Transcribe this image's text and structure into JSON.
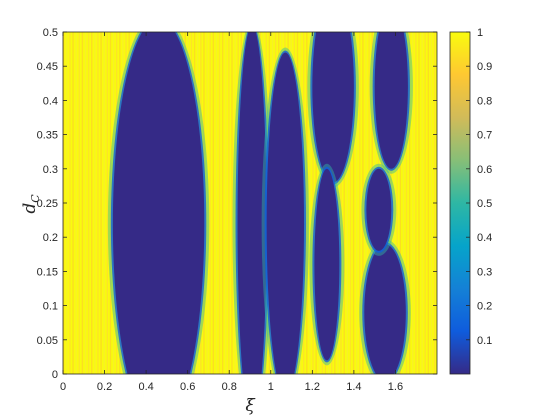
{
  "chart_data": {
    "type": "heatmap",
    "title": "",
    "xlabel": "ξ",
    "ylabel": "d",
    "ylabel_subscript": "C",
    "xlim": [
      0,
      1.8
    ],
    "ylim": [
      0,
      0.5
    ],
    "xticks": [
      0,
      0.2,
      0.4,
      0.6,
      0.8,
      1,
      1.2,
      1.4,
      1.6
    ],
    "xtick_labels": [
      "0",
      "0.2",
      "0.4",
      "0.6",
      "0.8",
      "1",
      "1.2",
      "1.4",
      "1.6"
    ],
    "yticks": [
      0,
      0.05,
      0.1,
      0.15,
      0.2,
      0.25,
      0.3,
      0.35,
      0.4,
      0.45,
      0.5
    ],
    "ytick_labels": [
      "0",
      "0.05",
      "0.1",
      "0.15",
      "0.2",
      "0.25",
      "0.3",
      "0.35",
      "0.4",
      "0.45",
      "0.5"
    ],
    "colorbar": {
      "colormap": "parula",
      "range": [
        0,
        1
      ],
      "ticks": [
        0.1,
        0.2,
        0.3,
        0.4,
        0.5,
        0.6,
        0.7,
        0.8,
        0.9,
        1
      ],
      "tick_labels": [
        "0.1",
        "0.2",
        "0.3",
        "0.4",
        "0.5",
        "0.6",
        "0.7",
        "0.8",
        "0.9",
        "1"
      ],
      "colors": [
        "#352a87",
        "#0f5cdd",
        "#1481d6",
        "#06a4ca",
        "#2eb7a4",
        "#87bf77",
        "#d1bb59",
        "#fec832",
        "#f9fb0e"
      ]
    },
    "low_value_regions": [
      {
        "x_center": 0.46,
        "y_center": 0.22,
        "x_half_width": 0.22,
        "y_half_height": 0.3
      },
      {
        "x_center": 0.91,
        "y_center": 0.22,
        "x_half_width": 0.07,
        "y_half_height": 0.29
      },
      {
        "x_center": 1.07,
        "y_center": 0.22,
        "x_half_width": 0.09,
        "y_half_height": 0.25
      },
      {
        "x_center": 1.3,
        "y_center": 0.42,
        "x_half_width": 0.1,
        "y_half_height": 0.14
      },
      {
        "x_center": 1.27,
        "y_center": 0.16,
        "x_half_width": 0.06,
        "y_half_height": 0.14
      },
      {
        "x_center": 1.58,
        "y_center": 0.42,
        "x_half_width": 0.08,
        "y_half_height": 0.12
      },
      {
        "x_center": 1.55,
        "y_center": 0.09,
        "x_half_width": 0.1,
        "y_half_height": 0.1
      },
      {
        "x_center": 1.52,
        "y_center": 0.24,
        "x_half_width": 0.06,
        "y_half_height": 0.06
      }
    ]
  }
}
